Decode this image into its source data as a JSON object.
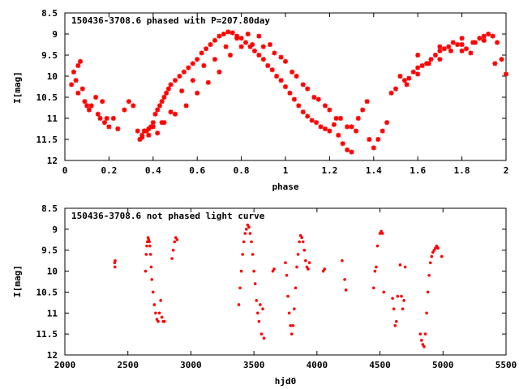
{
  "chart_data": [
    {
      "type": "scatter",
      "title": "150436-3708.6 phased with P=207.80day",
      "xlabel": "phase",
      "ylabel": "I[mag]",
      "xlim": [
        0,
        2
      ],
      "ylim": [
        12,
        8.5
      ],
      "y_inverted": true,
      "xticks": [
        "0",
        "0.2",
        "0.4",
        "0.6",
        "0.8",
        "1",
        "1.2",
        "1.4",
        "1.6",
        "1.8",
        "2"
      ],
      "yticks": [
        "8.5",
        "9",
        "9.5",
        "10",
        "10.5",
        "11",
        "11.5",
        "12"
      ],
      "grid": false,
      "marker_color": "#ff0000",
      "series": [
        {
          "x": [
            0.03,
            0.04,
            0.05,
            0.06,
            0.07,
            0.08,
            0.06,
            0.09,
            0.1,
            0.11,
            0.12,
            0.14,
            0.15,
            0.16,
            0.17,
            0.18,
            0.19,
            0.2,
            0.22,
            0.24,
            0.27,
            0.29,
            0.31,
            0.33,
            0.34,
            0.35,
            0.36,
            0.37,
            0.38,
            0.39,
            0.4,
            0.41,
            0.42,
            0.43,
            0.44,
            0.45,
            0.46,
            0.47,
            0.48,
            0.5,
            0.52,
            0.54,
            0.56,
            0.58,
            0.6,
            0.62,
            0.64,
            0.66,
            0.68,
            0.7,
            0.72,
            0.74,
            0.76,
            0.78,
            0.8,
            0.82,
            0.84,
            0.86,
            0.88,
            0.9,
            0.92,
            0.94,
            0.96,
            0.98,
            1.0,
            1.02,
            1.04,
            1.06,
            1.08,
            1.1,
            1.12,
            1.14,
            1.16,
            1.18,
            1.2,
            1.22,
            1.24,
            1.26,
            1.28,
            1.3,
            1.32,
            1.33,
            1.35,
            1.37,
            1.38,
            1.4,
            1.42,
            1.44,
            1.46,
            1.48,
            1.5,
            1.52,
            1.54,
            1.56,
            1.58,
            1.6,
            1.62,
            1.64,
            1.66,
            1.68,
            1.7,
            1.72,
            1.74,
            1.76,
            1.78,
            1.8,
            1.82,
            1.84,
            1.86,
            1.88,
            1.9,
            1.92,
            1.94,
            1.96,
            1.98,
            2.0,
            0.35,
            0.38,
            0.42,
            0.45,
            0.5,
            0.55,
            0.6,
            0.65,
            0.7,
            0.75,
            0.8,
            0.85,
            0.9,
            0.95,
            1.0,
            1.05,
            1.1,
            1.15,
            1.2,
            1.25,
            1.3,
            0.36,
            0.4,
            0.44,
            0.48,
            0.53,
            0.58,
            0.63,
            0.68,
            0.73,
            0.78,
            0.83,
            0.88,
            0.93,
            0.98,
            1.03,
            1.08,
            1.13,
            1.18,
            1.23,
            1.28,
            1.55,
            1.6,
            1.65,
            1.7,
            1.75,
            1.8,
            1.85,
            1.9,
            1.95,
            1.6,
            1.7,
            1.8,
            1.9
          ],
          "y": [
            10.2,
            9.9,
            10.1,
            9.75,
            9.65,
            10.3,
            10.4,
            10.6,
            10.7,
            10.8,
            10.7,
            10.5,
            10.9,
            11.0,
            10.6,
            11.1,
            11.0,
            11.2,
            11.0,
            11.25,
            10.8,
            10.6,
            10.7,
            11.3,
            11.5,
            11.4,
            11.3,
            11.3,
            11.25,
            11.2,
            11.1,
            10.9,
            10.8,
            10.7,
            10.6,
            10.5,
            10.4,
            10.3,
            10.2,
            10.1,
            10.0,
            9.9,
            9.8,
            9.7,
            9.6,
            9.45,
            9.35,
            9.25,
            9.15,
            9.05,
            9.0,
            8.95,
            8.97,
            9.05,
            9.1,
            9.2,
            9.3,
            9.4,
            9.5,
            9.6,
            9.75,
            9.85,
            10.0,
            10.1,
            10.25,
            10.4,
            10.55,
            10.7,
            10.85,
            10.95,
            11.05,
            11.1,
            11.2,
            11.25,
            11.3,
            11.15,
            11.4,
            11.6,
            11.75,
            11.8,
            11.3,
            11.0,
            10.8,
            10.6,
            11.5,
            11.7,
            11.5,
            11.3,
            11.1,
            10.4,
            10.3,
            10.0,
            10.1,
            10.05,
            9.9,
            9.8,
            9.75,
            9.7,
            9.6,
            9.5,
            9.4,
            9.35,
            9.3,
            9.2,
            9.25,
            9.4,
            9.35,
            9.45,
            9.2,
            9.1,
            9.05,
            9.0,
            9.05,
            9.2,
            9.6,
            9.95,
            11.45,
            11.4,
            11.35,
            11.1,
            10.9,
            10.7,
            10.4,
            10.15,
            9.9,
            9.5,
            9.3,
            9.25,
            9.3,
            9.45,
            9.65,
            10.0,
            10.3,
            10.55,
            10.8,
            11.0,
            11.2,
            11.3,
            11.2,
            11.1,
            10.85,
            10.35,
            10.1,
            9.75,
            9.6,
            9.3,
            9.1,
            9.0,
            9.05,
            9.25,
            9.55,
            9.9,
            10.2,
            10.5,
            10.7,
            11.0,
            11.2,
            10.2,
            9.95,
            9.7,
            9.6,
            9.4,
            9.25,
            9.2,
            9.15,
            9.7,
            9.5,
            9.3,
            9.1,
            9.15
          ]
        }
      ]
    },
    {
      "type": "scatter",
      "title": "150436-3708.6 not phased light curve",
      "xlabel": "hjd0",
      "ylabel": "I[mag]",
      "xlim": [
        2000,
        5500
      ],
      "ylim": [
        12,
        8.5
      ],
      "y_inverted": true,
      "xticks": [
        "2000",
        "2500",
        "3000",
        "3500",
        "4000",
        "4500",
        "5000",
        "5500"
      ],
      "yticks": [
        "8.5",
        "9",
        "9.5",
        "10",
        "10.5",
        "11",
        "11.5",
        "12"
      ],
      "grid": false,
      "marker_color": "#ff0000",
      "series": [
        {
          "x": [
            2395,
            2397,
            2399,
            2640,
            2645,
            2650,
            2655,
            2660,
            2665,
            2670,
            2675,
            2680,
            2685,
            2690,
            2700,
            2710,
            2720,
            2730,
            2740,
            2750,
            2760,
            2770,
            2780,
            2790,
            2850,
            2860,
            2870,
            2880,
            2890,
            3380,
            3390,
            3400,
            3410,
            3420,
            3430,
            3440,
            3450,
            3460,
            3470,
            3480,
            3490,
            3500,
            3510,
            3520,
            3530,
            3540,
            3550,
            3560,
            3570,
            3580,
            3650,
            3660,
            3750,
            3760,
            3770,
            3780,
            3790,
            3800,
            3810,
            3820,
            3830,
            3840,
            3850,
            3860,
            3870,
            3880,
            3890,
            3900,
            3910,
            3920,
            3930,
            3940,
            4050,
            4060,
            4200,
            4220,
            4230,
            4450,
            4460,
            4470,
            4480,
            4500,
            4510,
            4520,
            4530,
            4600,
            4610,
            4620,
            4630,
            4640,
            4660,
            4670,
            4680,
            4690,
            4700,
            4820,
            4830,
            4840,
            4850,
            4860,
            4870,
            4880,
            4890,
            4900,
            4910,
            4920,
            4930,
            4940,
            4950,
            4960,
            4990
          ],
          "y": [
            9.8,
            9.9,
            9.75,
            10.0,
            9.6,
            9.4,
            9.3,
            9.2,
            9.25,
            9.3,
            9.4,
            9.6,
            9.9,
            10.2,
            10.5,
            10.8,
            11.0,
            11.15,
            11.2,
            11.0,
            10.7,
            11.1,
            11.2,
            11.2,
            9.7,
            9.5,
            9.3,
            9.2,
            9.25,
            10.8,
            10.4,
            10.0,
            9.6,
            9.3,
            9.1,
            9.0,
            8.9,
            8.95,
            9.1,
            9.3,
            9.6,
            10.0,
            10.3,
            10.7,
            11.0,
            11.2,
            10.8,
            11.5,
            10.9,
            11.6,
            10.0,
            9.95,
            9.8,
            10.1,
            10.6,
            11.0,
            11.3,
            11.5,
            11.3,
            10.9,
            10.4,
            9.9,
            9.6,
            9.3,
            9.15,
            9.2,
            9.3,
            9.5,
            9.75,
            9.9,
            9.95,
            9.8,
            10.0,
            9.95,
            9.75,
            10.2,
            10.45,
            10.4,
            10.0,
            9.9,
            9.4,
            9.1,
            9.05,
            9.1,
            10.5,
            10.65,
            10.9,
            11.3,
            11.2,
            10.6,
            9.85,
            10.6,
            10.9,
            10.7,
            9.9,
            11.5,
            11.65,
            11.75,
            11.8,
            11.5,
            11.0,
            10.5,
            10.1,
            9.8,
            9.65,
            9.55,
            9.5,
            9.45,
            9.4,
            9.45,
            9.65
          ]
        }
      ]
    }
  ]
}
